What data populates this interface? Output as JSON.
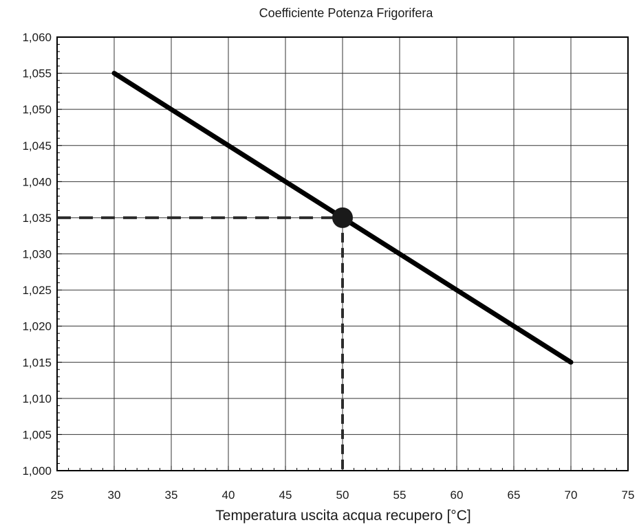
{
  "chart_data": {
    "type": "line",
    "title": "Coefficiente Potenza Frigorifera",
    "xlabel": "Temperatura uscita acqua recupero [°C]",
    "ylabel": "",
    "xlim": [
      25,
      75
    ],
    "ylim": [
      1.0,
      1.06
    ],
    "x_ticks": [
      25,
      30,
      35,
      40,
      45,
      50,
      55,
      60,
      65,
      70,
      75
    ],
    "y_ticks": [
      "1,000",
      "1,005",
      "1,010",
      "1,015",
      "1,020",
      "1,025",
      "1,030",
      "1,035",
      "1,040",
      "1,045",
      "1,050",
      "1,055",
      "1,060"
    ],
    "y_tick_values": [
      1.0,
      1.005,
      1.01,
      1.015,
      1.02,
      1.025,
      1.03,
      1.035,
      1.04,
      1.045,
      1.05,
      1.055,
      1.06
    ],
    "grid": true,
    "series": [
      {
        "x": [
          30,
          70
        ],
        "y": [
          1.055,
          1.015
        ],
        "color": "#000000"
      }
    ],
    "highlight_point": {
      "x": 50,
      "y": 1.035,
      "color": "#1a1a1a"
    },
    "reference_lines": {
      "style": "dashed",
      "color": "#2b2b2b"
    }
  }
}
